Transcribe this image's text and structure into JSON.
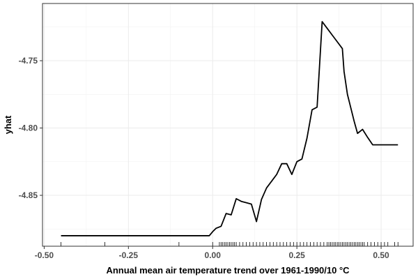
{
  "chart_data": {
    "type": "line",
    "title": "",
    "xlabel": "Annual mean air temperature trend over 1961-1990/10 °C",
    "ylabel": "yhat",
    "xlim": [
      -0.505,
      0.595
    ],
    "ylim": [
      -4.8878,
      -4.7075
    ],
    "x_ticks": [
      -0.5,
      -0.25,
      0.0,
      0.25,
      0.5
    ],
    "x_tick_labels": [
      "-0.50",
      "-0.25",
      "0.00",
      "0.25",
      "0.50"
    ],
    "y_ticks": [
      -4.75,
      -4.8,
      -4.85
    ],
    "y_tick_labels": [
      "-4.75",
      "-4.80",
      "-4.85"
    ],
    "grid": true,
    "legend": "none",
    "series": [
      {
        "x": [
          -0.45,
          -0.28,
          -0.1,
          -0.01,
          0.0,
          0.01,
          0.025,
          0.04,
          0.055,
          0.07,
          0.085,
          0.1,
          0.115,
          0.13,
          0.145,
          0.16,
          0.175,
          0.19,
          0.205,
          0.22,
          0.235,
          0.25,
          0.265,
          0.28,
          0.295,
          0.31,
          0.325,
          0.34,
          0.355,
          0.37,
          0.385,
          0.39,
          0.4,
          0.41,
          0.42,
          0.43,
          0.445,
          0.46,
          0.475,
          0.49,
          0.505,
          0.52,
          0.535,
          0.55
        ],
        "y": [
          -4.88,
          -4.88,
          -4.88,
          -4.88,
          -4.877,
          -4.8745,
          -4.873,
          -4.8635,
          -4.8645,
          -4.8525,
          -4.8545,
          -4.8555,
          -4.8565,
          -4.8695,
          -4.853,
          -4.8445,
          -4.8395,
          -4.8345,
          -4.8265,
          -4.8265,
          -4.8345,
          -4.825,
          -4.823,
          -4.8075,
          -4.7865,
          -4.7845,
          -4.721,
          -4.726,
          -4.731,
          -4.736,
          -4.741,
          -4.758,
          -4.775,
          -4.785,
          -4.795,
          -4.804,
          -4.801,
          -4.807,
          -4.8125,
          -4.8125,
          -4.8125,
          -4.8125,
          -4.8125,
          -4.8125
        ]
      }
    ],
    "rug_x": [
      -0.45,
      -0.32,
      -0.1,
      0.0,
      0.02,
      0.025,
      0.03,
      0.035,
      0.04,
      0.045,
      0.05,
      0.055,
      0.06,
      0.065,
      0.07,
      0.08,
      0.09,
      0.1,
      0.11,
      0.12,
      0.13,
      0.14,
      0.15,
      0.16,
      0.17,
      0.18,
      0.19,
      0.2,
      0.21,
      0.22,
      0.23,
      0.24,
      0.25,
      0.26,
      0.27,
      0.28,
      0.29,
      0.3,
      0.31,
      0.32,
      0.33,
      0.34,
      0.345,
      0.35,
      0.355,
      0.36,
      0.365,
      0.37,
      0.375,
      0.38,
      0.385,
      0.39,
      0.395,
      0.4,
      0.405,
      0.41,
      0.415,
      0.42,
      0.425,
      0.43,
      0.435,
      0.44,
      0.445,
      0.45,
      0.46,
      0.47,
      0.48,
      0.49,
      0.5,
      0.51,
      0.52,
      0.54,
      0.55
    ]
  }
}
